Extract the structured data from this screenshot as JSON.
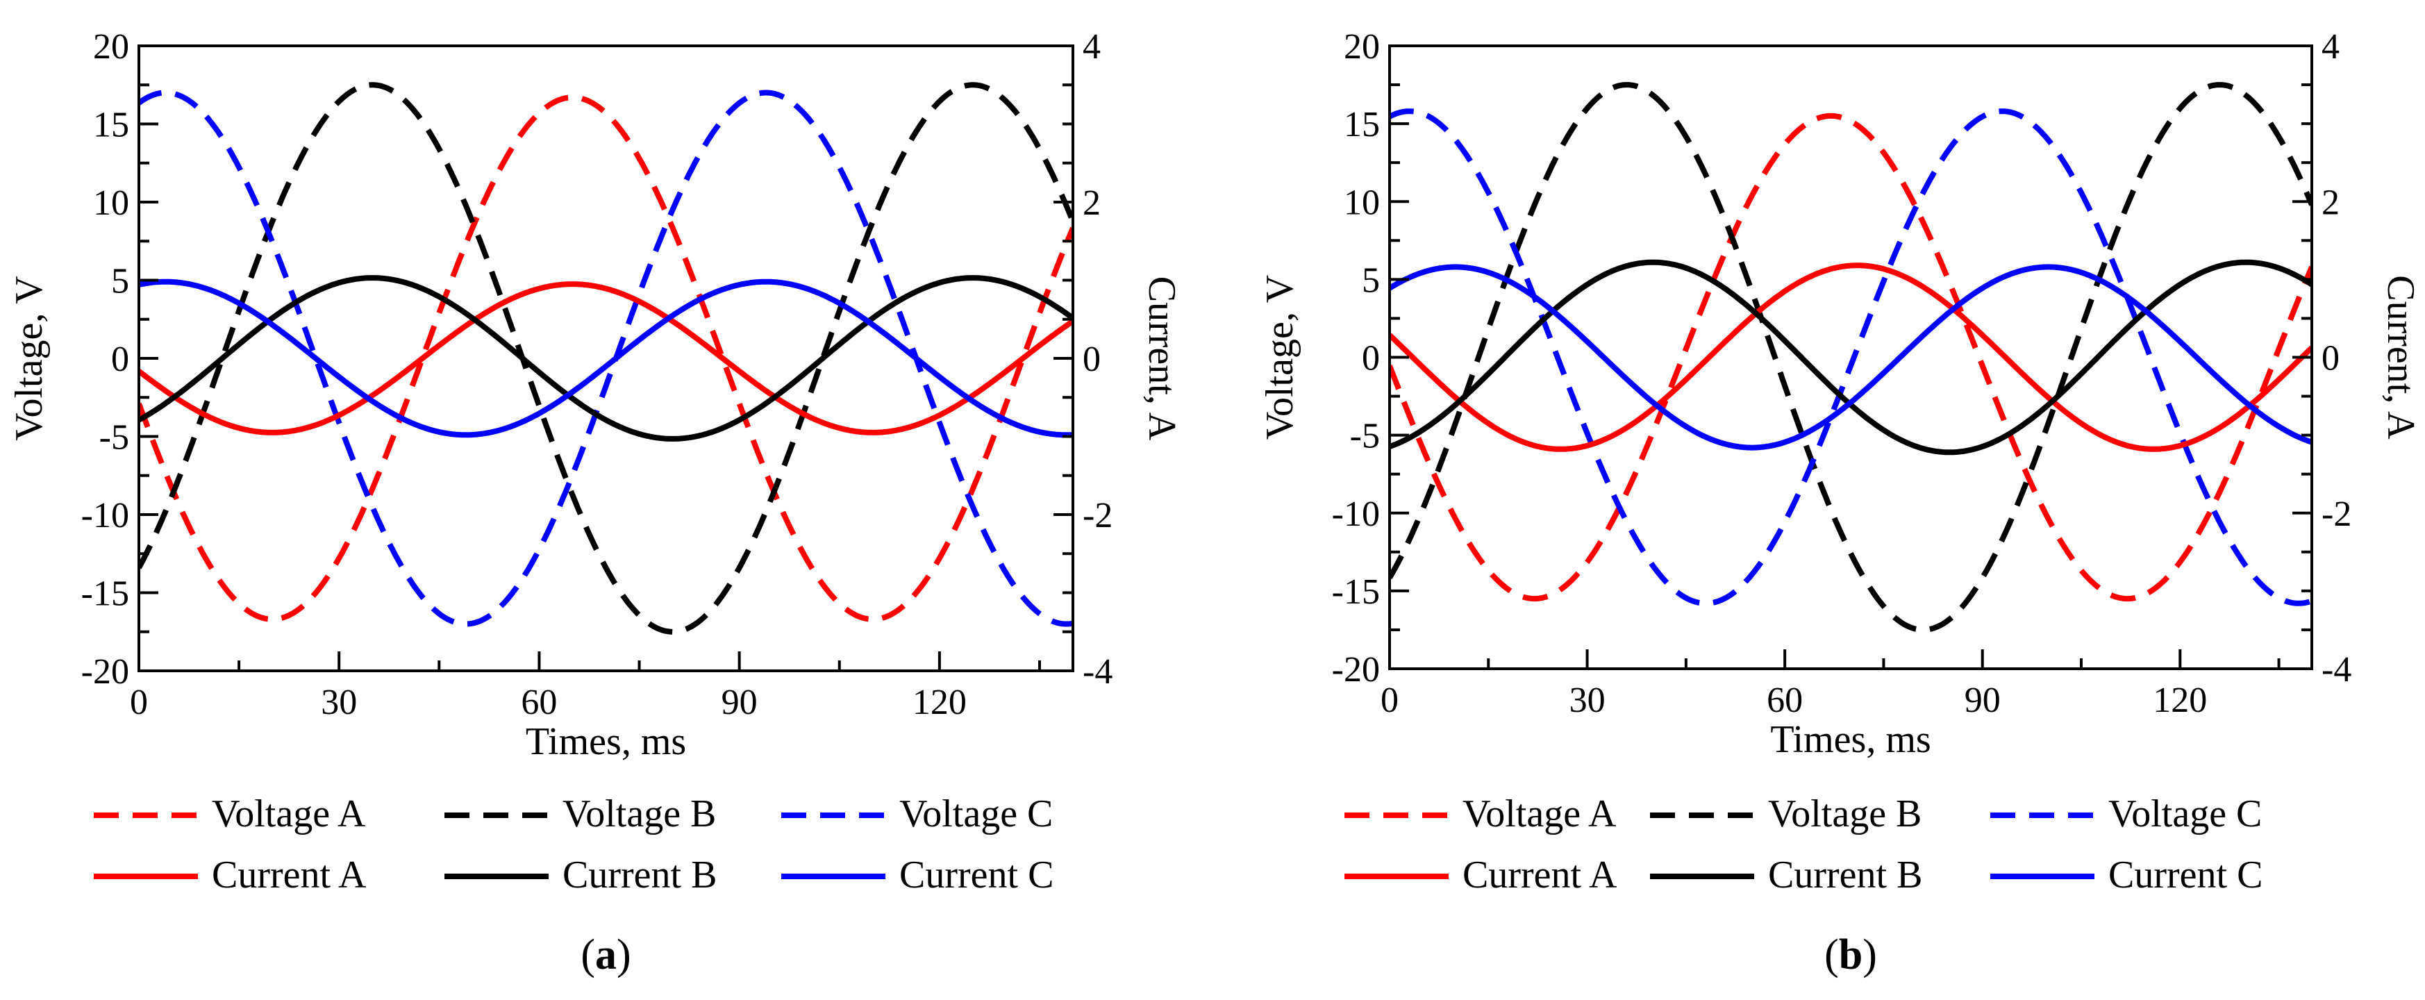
{
  "chart_data": [
    {
      "type": "line",
      "panel_label": "a",
      "panel_caption": "(a)",
      "xlabel": "Times, ms",
      "ylabel_left": "Voltage,  V",
      "ylabel_right": "Current,  A",
      "xlim": [
        0,
        140
      ],
      "ylim_left": [
        -20,
        20
      ],
      "ylim_right": [
        -4,
        4
      ],
      "xticks": [
        0,
        30,
        60,
        90,
        120
      ],
      "yticks_left": [
        -20,
        -15,
        -10,
        -5,
        0,
        5,
        10,
        15,
        20
      ],
      "yticks_right": [
        -4,
        -2,
        0,
        2,
        4
      ],
      "yticklabels_right": [
        "-4",
        "-2",
        "0",
        "2",
        "4"
      ],
      "series": [
        {
          "name": "Voltage A",
          "axis": "left",
          "color": "#ff0000",
          "dash": "dashed",
          "amplitude": 16.7,
          "period_ms": 90,
          "peak_ms": 65
        },
        {
          "name": "Voltage B",
          "axis": "left",
          "color": "#000000",
          "dash": "dashed",
          "amplitude": 17.5,
          "period_ms": 90,
          "peak_ms": 35
        },
        {
          "name": "Voltage C",
          "axis": "left",
          "color": "#0000ff",
          "dash": "dashed",
          "amplitude": 17.0,
          "period_ms": 90,
          "peak_ms": 4
        },
        {
          "name": "Current A",
          "axis": "right",
          "color": "#ff0000",
          "dash": "solid",
          "amplitude": 0.95,
          "period_ms": 90,
          "peak_ms": 65
        },
        {
          "name": "Current B",
          "axis": "right",
          "color": "#000000",
          "dash": "solid",
          "amplitude": 1.03,
          "period_ms": 90,
          "peak_ms": 35
        },
        {
          "name": "Current C",
          "axis": "right",
          "color": "#0000ff",
          "dash": "solid",
          "amplitude": 0.98,
          "period_ms": 90,
          "peak_ms": 4
        }
      ],
      "legend_rows": [
        [
          "Voltage A",
          "Voltage B",
          "Voltage C"
        ],
        [
          "Current A",
          "Current B",
          "Current C"
        ]
      ],
      "legend_position": "bottom"
    },
    {
      "type": "line",
      "panel_label": "b",
      "panel_caption": "(b)",
      "xlabel": "Times, ms",
      "ylabel_left": "Voltage,  V",
      "ylabel_right": "Current,  A",
      "xlim": [
        0,
        140
      ],
      "ylim_left": [
        -20,
        20
      ],
      "ylim_right": [
        -4,
        4
      ],
      "xticks": [
        0,
        30,
        60,
        90,
        120
      ],
      "yticks_left": [
        -20,
        -15,
        -10,
        -5,
        0,
        5,
        10,
        15,
        20
      ],
      "yticks_right": [
        -4,
        -2,
        0,
        2,
        4
      ],
      "yticklabels_right": [
        "-4",
        "-2",
        "0",
        "2",
        "4"
      ],
      "series": [
        {
          "name": "Voltage A",
          "axis": "left",
          "color": "#ff0000",
          "dash": "dashed",
          "amplitude": 15.5,
          "period_ms": 90,
          "peak_ms": 67
        },
        {
          "name": "Voltage B",
          "axis": "left",
          "color": "#000000",
          "dash": "dashed",
          "amplitude": 17.5,
          "period_ms": 90,
          "peak_ms": 36
        },
        {
          "name": "Voltage C",
          "axis": "left",
          "color": "#0000ff",
          "dash": "dashed",
          "amplitude": 15.8,
          "period_ms": 90,
          "peak_ms": 3
        },
        {
          "name": "Current A",
          "axis": "right",
          "color": "#ff0000",
          "dash": "solid",
          "amplitude": 1.18,
          "period_ms": 90,
          "peak_ms": 71
        },
        {
          "name": "Current B",
          "axis": "right",
          "color": "#000000",
          "dash": "solid",
          "amplitude": 1.22,
          "period_ms": 90,
          "peak_ms": 40
        },
        {
          "name": "Current C",
          "axis": "right",
          "color": "#0000ff",
          "dash": "solid",
          "amplitude": 1.16,
          "period_ms": 90,
          "peak_ms": 10
        }
      ],
      "legend_rows": [
        [
          "Voltage A",
          "Voltage B",
          "Voltage C"
        ],
        [
          "Current A",
          "Current B",
          "Current C"
        ]
      ],
      "legend_position": "bottom"
    }
  ]
}
